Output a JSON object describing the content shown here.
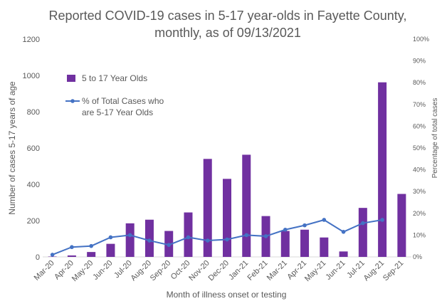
{
  "chart_data": {
    "type": "bar",
    "title_lines": [
      "Reported COVID-19 cases in 5-17 year-olds in Fayette County,",
      "monthly, as of 09/13/2021"
    ],
    "xlabel": "Month of illness onset or testing",
    "ylabel": "Number of cases 5-17 years of age",
    "y2label": "Percentage of total cases",
    "categories": [
      "Mar-20",
      "Apr-20",
      "May-20",
      "Jun-20",
      "Jul-20",
      "Aug-20",
      "Sep-20",
      "Oct-20",
      "Nov-20",
      "Dec-20",
      "Jan-21",
      "Feb-21",
      "Mar-21",
      "Apr-21",
      "May-21",
      "Jun-21",
      "Jul-21",
      "Aug-21",
      "Sep-21"
    ],
    "ylim": [
      0,
      1200
    ],
    "yticks": [
      0,
      200,
      400,
      600,
      800,
      1000,
      1200
    ],
    "y2lim": [
      0,
      100
    ],
    "y2ticks": [
      "0%",
      "10%",
      "20%",
      "30%",
      "40%",
      "50%",
      "60%",
      "70%",
      "80%",
      "90%",
      "100%"
    ],
    "series": [
      {
        "name": "5 to 17 Year Olds",
        "kind": "bar",
        "color": "#7030A0",
        "values": [
          2,
          8,
          27,
          72,
          185,
          205,
          143,
          245,
          540,
          430,
          563,
          225,
          143,
          150,
          107,
          30,
          270,
          962,
          347
        ]
      },
      {
        "name": "% of Total Cases who are 5-17 Year Olds",
        "legend_lines": [
          "% of Total Cases who",
          "are 5-17 Year Olds"
        ],
        "kind": "line",
        "axis": "secondary",
        "unit": "%",
        "color": "#4472C4",
        "values": [
          1,
          4.5,
          5,
          9,
          10,
          7.5,
          5.5,
          9,
          7.5,
          8,
          10,
          9.5,
          12.5,
          14.5,
          17,
          11.5,
          15.5,
          17,
          null
        ]
      }
    ],
    "grid": false,
    "legend_position": "top-left"
  }
}
